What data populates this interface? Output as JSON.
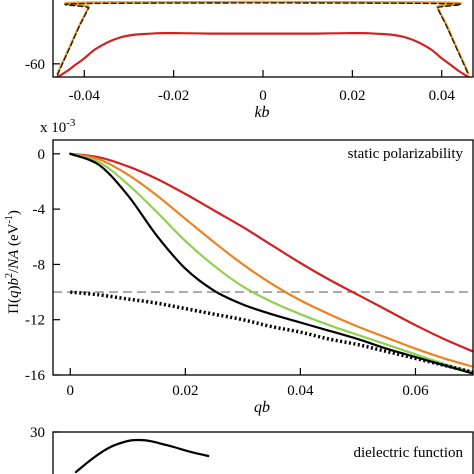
{
  "chart_data": [
    {
      "type": "line",
      "xlabel": "kb",
      "ylabel": "",
      "xlim": [
        -0.047,
        0.047
      ],
      "ylim": [
        -66,
        -30
      ],
      "xticks": [
        -0.04,
        -0.02,
        0,
        0.02,
        0.04
      ],
      "xtick_labels": [
        "-0.04",
        "-0.02",
        "0",
        "0.02",
        "0.04"
      ],
      "yticks": [
        -60
      ],
      "ytick_labels": [
        "-60"
      ],
      "series": [
        {
          "color": "#d42020",
          "x": [
            -0.046,
            -0.044,
            -0.042,
            -0.04,
            -0.038,
            -0.036,
            -0.034,
            -0.032,
            -0.03,
            -0.028,
            -0.026,
            -0.024,
            -0.022,
            -0.02,
            -0.016,
            -0.012,
            -0.008,
            -0.004,
            0,
            0.004,
            0.008,
            0.012,
            0.016,
            0.02,
            0.022,
            0.024,
            0.026,
            0.028,
            0.03,
            0.032,
            0.034,
            0.036,
            0.038,
            0.04,
            0.042,
            0.044,
            0.046
          ],
          "values": [
            -66,
            -63.5,
            -60.5,
            -57.5,
            -54,
            -51.5,
            -49.5,
            -48,
            -47.1,
            -46.6,
            -46.3,
            -46.1,
            -46.0,
            -46.0,
            -46.1,
            -46.2,
            -46.2,
            -46.2,
            -46.2,
            -46.2,
            -46.2,
            -46.2,
            -46.1,
            -46.0,
            -46.0,
            -46.1,
            -46.3,
            -46.6,
            -47.1,
            -48,
            -49.5,
            -51.5,
            -54,
            -57.5,
            -60.5,
            -63.5,
            -66
          ]
        },
        {
          "color": "#f0a020",
          "x": [
            -0.046,
            -0.045,
            -0.044,
            -0.043,
            -0.042,
            -0.041,
            -0.04,
            -0.039,
            -0.0385,
            0.0385,
            0.039,
            0.04,
            0.041,
            0.042,
            0.043,
            0.044,
            0.045,
            0.046
          ],
          "values": [
            -64.5,
            -60,
            -55.5,
            -51,
            -46.5,
            -42,
            -38,
            -34,
            -32,
            -32,
            -34,
            -38,
            -42,
            -46.5,
            -51,
            -55.5,
            -60,
            -64.5
          ]
        },
        {
          "color": "#1a1a1a",
          "dashed": true,
          "x": [
            -0.046,
            -0.045,
            -0.044,
            -0.043,
            -0.042,
            -0.041,
            -0.04,
            -0.039,
            -0.0385,
            0.0385,
            0.039,
            0.04,
            0.041,
            0.042,
            0.043,
            0.044,
            0.045,
            0.046
          ],
          "values": [
            -65,
            -60.5,
            -56,
            -51.5,
            -47,
            -42.5,
            -38.5,
            -34.5,
            -32.5,
            -32.5,
            -34.5,
            -38.5,
            -42.5,
            -47,
            -51.5,
            -56,
            -60.5,
            -65
          ]
        }
      ]
    },
    {
      "type": "line",
      "title": "static polarizability",
      "xlabel": "qb",
      "ylabel": "Π(q)b²/NA (eV⁻¹)",
      "scale_label": "x 10",
      "scale_exponent": "-3",
      "xlim": [
        -0.003,
        0.07
      ],
      "ylim": [
        -16,
        1
      ],
      "xticks": [
        0,
        0.02,
        0.04,
        0.06
      ],
      "xtick_labels": [
        "0",
        "0.02",
        "0.04",
        "0.06"
      ],
      "yticks": [
        0,
        -4,
        -8,
        -12,
        -16
      ],
      "ytick_labels": [
        "0",
        "-4",
        "-8",
        "-12",
        "-16"
      ],
      "reference_line": {
        "y": -10,
        "color": "#999999",
        "style": "dashed"
      },
      "series": [
        {
          "color": "#d42020",
          "x": [
            0,
            0.005,
            0.01,
            0.015,
            0.02,
            0.025,
            0.03,
            0.035,
            0.04,
            0.045,
            0.05,
            0.055,
            0.06,
            0.065,
            0.07
          ],
          "values": [
            0,
            -0.25,
            -0.9,
            -1.8,
            -2.9,
            -4.1,
            -5.3,
            -6.6,
            -7.9,
            -9.1,
            -10.2,
            -11.3,
            -12.4,
            -13.4,
            -14.3
          ]
        },
        {
          "color": "#f08020",
          "x": [
            0,
            0.005,
            0.01,
            0.015,
            0.02,
            0.025,
            0.03,
            0.035,
            0.04,
            0.045,
            0.05,
            0.055,
            0.06,
            0.065,
            0.07
          ],
          "values": [
            0,
            -0.4,
            -1.5,
            -3.0,
            -4.7,
            -6.4,
            -8.0,
            -9.4,
            -10.6,
            -11.6,
            -12.5,
            -13.3,
            -14.1,
            -14.8,
            -15.4
          ]
        },
        {
          "color": "#8fd14f",
          "x": [
            0,
            0.005,
            0.01,
            0.015,
            0.02,
            0.025,
            0.03,
            0.035,
            0.04,
            0.045,
            0.05,
            0.055,
            0.06,
            0.065,
            0.07
          ],
          "values": [
            0,
            -0.6,
            -2.2,
            -4.2,
            -6.3,
            -8.1,
            -9.6,
            -10.7,
            -11.6,
            -12.4,
            -13.1,
            -13.8,
            -14.5,
            -15.2,
            -15.8
          ]
        },
        {
          "color": "#000000",
          "x": [
            0,
            0.005,
            0.01,
            0.015,
            0.02,
            0.025,
            0.03,
            0.035,
            0.04,
            0.045,
            0.05,
            0.055,
            0.06,
            0.065,
            0.07
          ],
          "values": [
            0,
            -0.8,
            -3.0,
            -5.9,
            -8.3,
            -9.9,
            -10.9,
            -11.6,
            -12.2,
            -12.8,
            -13.4,
            -14.1,
            -14.7,
            -15.3,
            -15.9
          ]
        },
        {
          "color": "#000000",
          "dotted": true,
          "x": [
            0,
            0.005,
            0.01,
            0.015,
            0.02,
            0.025,
            0.03,
            0.035,
            0.04,
            0.045,
            0.05,
            0.055,
            0.06,
            0.065,
            0.07
          ],
          "values": [
            -10,
            -10.2,
            -10.5,
            -10.8,
            -11.2,
            -11.6,
            -12.0,
            -12.5,
            -12.9,
            -13.4,
            -13.8,
            -14.3,
            -14.8,
            -15.3,
            -15.8
          ]
        }
      ]
    },
    {
      "type": "line",
      "title": "dielectric function",
      "xlim": [
        -0.003,
        0.07
      ],
      "ylim": [
        0,
        30
      ],
      "yticks": [
        30
      ],
      "ytick_labels": [
        "30"
      ],
      "series": [
        {
          "color": "#000000",
          "x": [
            0.001,
            0.004,
            0.007,
            0.01,
            0.012,
            0.014,
            0.016,
            0.018,
            0.02,
            0.022,
            0.024
          ],
          "values": [
            10,
            17,
            22.5,
            25.5,
            26,
            25.4,
            24,
            22.5,
            20.8,
            19.3,
            18
          ]
        }
      ]
    }
  ]
}
